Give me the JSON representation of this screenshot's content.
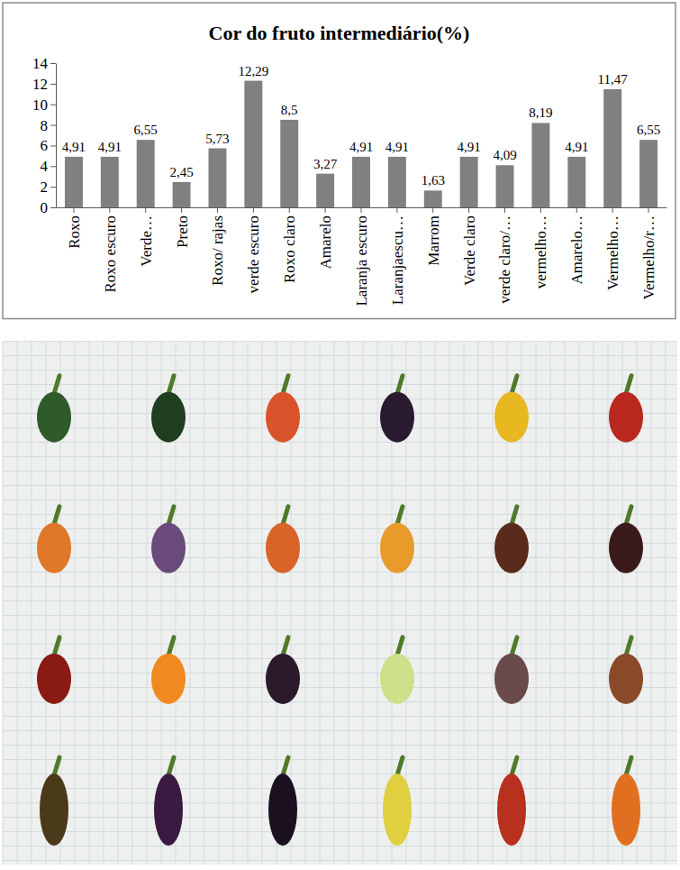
{
  "chart_data": {
    "type": "bar",
    "title": "Cor do fruto intermediário(%)",
    "categories": [
      "Roxo",
      "Roxo escuro",
      "Verde…",
      "Preto",
      "Roxo/ rajas",
      "verde escuro",
      "Roxo claro",
      "Amarelo",
      "Laranja escuro",
      "Laranjaescu…",
      "Marrom",
      "Verde claro",
      "verde claro/…",
      "vermelho…",
      "Amarelo…",
      "Vermelho…",
      "Vermelho/r…"
    ],
    "values": [
      4.91,
      4.91,
      6.55,
      2.45,
      5.73,
      12.29,
      8.5,
      3.27,
      4.91,
      4.91,
      1.63,
      4.91,
      4.09,
      8.19,
      4.91,
      11.47,
      6.55
    ],
    "value_labels": [
      "4,91",
      "4,91",
      "6,55",
      "2,45",
      "5,73",
      "12,29",
      "8,5",
      "3,27",
      "4,91",
      "4,91",
      "1,63",
      "4,91",
      "4,09",
      "8,19",
      "4,91",
      "11,47",
      "6,55"
    ],
    "color": "#808080",
    "ylim": [
      0,
      14
    ],
    "yticks": [
      0,
      2,
      4,
      6,
      8,
      10,
      12,
      14
    ],
    "grid": false,
    "data_labels": true
  }
}
